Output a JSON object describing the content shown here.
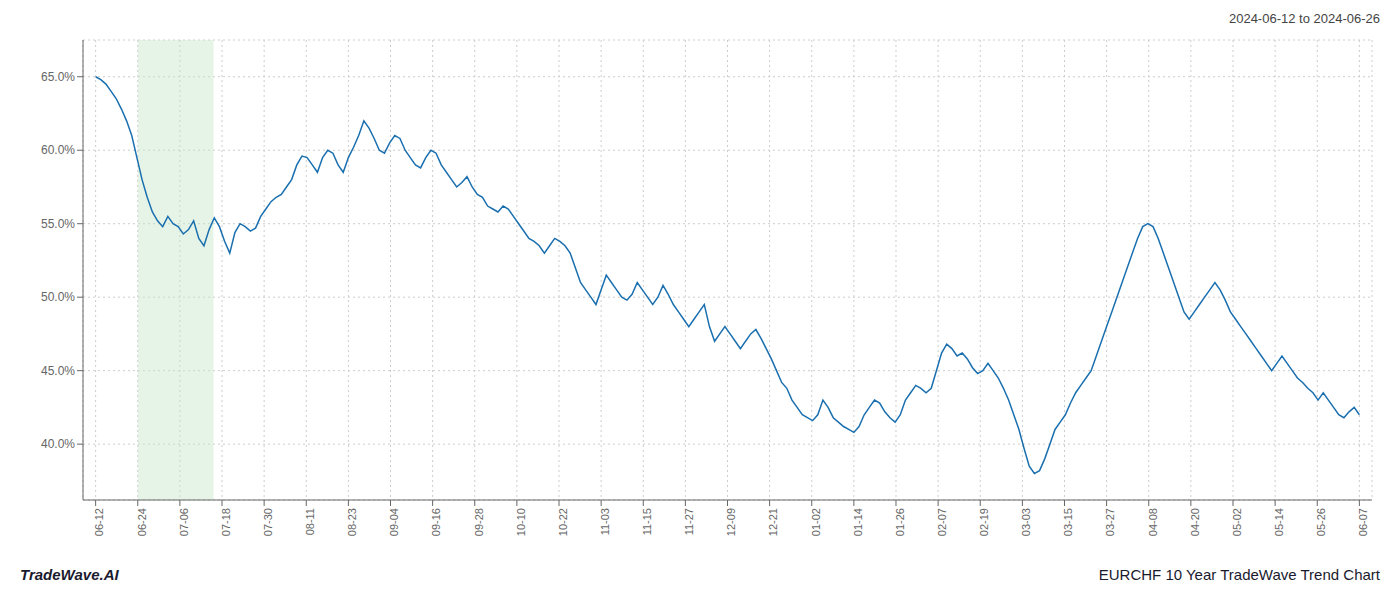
{
  "chart_data": {
    "type": "line",
    "title": "EURCHF 10 Year TradeWave Trend Chart",
    "subtitle": "2024-06-12 to 2024-06-26",
    "annotations": [
      "TradeWave.AI"
    ],
    "color": "#1a6faf",
    "grid": true,
    "xlim": [
      -0.3,
      30.3
    ],
    "xticks": [
      {
        "value": 0,
        "label": "06-12"
      },
      {
        "value": 1,
        "label": "06-24"
      },
      {
        "value": 2,
        "label": "07-06"
      },
      {
        "value": 3,
        "label": "07-18"
      },
      {
        "value": 4,
        "label": "07-30"
      },
      {
        "value": 5,
        "label": "08-11"
      },
      {
        "value": 6,
        "label": "08-23"
      },
      {
        "value": 7,
        "label": "09-04"
      },
      {
        "value": 8,
        "label": "09-16"
      },
      {
        "value": 9,
        "label": "09-28"
      },
      {
        "value": 10,
        "label": "10-10"
      },
      {
        "value": 11,
        "label": "10-22"
      },
      {
        "value": 12,
        "label": "11-03"
      },
      {
        "value": 13,
        "label": "11-15"
      },
      {
        "value": 14,
        "label": "11-27"
      },
      {
        "value": 15,
        "label": "12-09"
      },
      {
        "value": 16,
        "label": "12-21"
      },
      {
        "value": 17,
        "label": "01-02"
      },
      {
        "value": 18,
        "label": "01-14"
      },
      {
        "value": 19,
        "label": "01-26"
      },
      {
        "value": 20,
        "label": "02-07"
      },
      {
        "value": 21,
        "label": "02-19"
      },
      {
        "value": 22,
        "label": "03-03"
      },
      {
        "value": 23,
        "label": "03-15"
      },
      {
        "value": 24,
        "label": "03-27"
      },
      {
        "value": 25,
        "label": "04-08"
      },
      {
        "value": 26,
        "label": "04-20"
      },
      {
        "value": 27,
        "label": "05-02"
      },
      {
        "value": 28,
        "label": "05-14"
      },
      {
        "value": 29,
        "label": "05-26"
      },
      {
        "value": 30,
        "label": "06-07"
      }
    ],
    "ylim": [
      0.362,
      0.675
    ],
    "yticks": [
      {
        "value": 0.4,
        "label": "40.0%"
      },
      {
        "value": 0.45,
        "label": "45.0%"
      },
      {
        "value": 0.5,
        "label": "50.0%"
      },
      {
        "value": 0.55,
        "label": "55.0%"
      },
      {
        "value": 0.6,
        "label": "60.0%"
      },
      {
        "value": 0.65,
        "label": "65.0%"
      }
    ],
    "shade": {
      "x": [
        1.0,
        2.8
      ],
      "color": "#c8e6c9"
    },
    "values": [
      0.65,
      0.648,
      0.645,
      0.64,
      0.635,
      0.628,
      0.62,
      0.61,
      0.595,
      0.58,
      0.568,
      0.558,
      0.552,
      0.548,
      0.555,
      0.55,
      0.548,
      0.543,
      0.546,
      0.552,
      0.54,
      0.535,
      0.546,
      0.554,
      0.548,
      0.538,
      0.53,
      0.544,
      0.55,
      0.548,
      0.545,
      0.547,
      0.555,
      0.56,
      0.565,
      0.568,
      0.57,
      0.575,
      0.58,
      0.59,
      0.596,
      0.595,
      0.59,
      0.585,
      0.595,
      0.6,
      0.598,
      0.59,
      0.585,
      0.595,
      0.602,
      0.61,
      0.62,
      0.615,
      0.608,
      0.6,
      0.598,
      0.605,
      0.61,
      0.608,
      0.6,
      0.595,
      0.59,
      0.588,
      0.595,
      0.6,
      0.598,
      0.59,
      0.585,
      0.58,
      0.575,
      0.578,
      0.582,
      0.575,
      0.57,
      0.568,
      0.562,
      0.56,
      0.558,
      0.562,
      0.56,
      0.555,
      0.55,
      0.545,
      0.54,
      0.538,
      0.535,
      0.53,
      0.535,
      0.54,
      0.538,
      0.535,
      0.53,
      0.52,
      0.51,
      0.505,
      0.5,
      0.495,
      0.505,
      0.515,
      0.51,
      0.505,
      0.5,
      0.498,
      0.502,
      0.51,
      0.505,
      0.5,
      0.495,
      0.5,
      0.508,
      0.502,
      0.495,
      0.49,
      0.485,
      0.48,
      0.485,
      0.49,
      0.495,
      0.48,
      0.47,
      0.475,
      0.48,
      0.475,
      0.47,
      0.465,
      0.47,
      0.475,
      0.478,
      0.472,
      0.465,
      0.458,
      0.45,
      0.442,
      0.438,
      0.43,
      0.425,
      0.42,
      0.418,
      0.416,
      0.42,
      0.43,
      0.425,
      0.418,
      0.415,
      0.412,
      0.41,
      0.408,
      0.412,
      0.42,
      0.425,
      0.43,
      0.428,
      0.422,
      0.418,
      0.415,
      0.42,
      0.43,
      0.435,
      0.44,
      0.438,
      0.435,
      0.438,
      0.45,
      0.462,
      0.468,
      0.465,
      0.46,
      0.462,
      0.458,
      0.452,
      0.448,
      0.45,
      0.455,
      0.45,
      0.445,
      0.438,
      0.43,
      0.42,
      0.41,
      0.397,
      0.385,
      0.38,
      0.382,
      0.39,
      0.4,
      0.41,
      0.415,
      0.42,
      0.428,
      0.435,
      0.44,
      0.445,
      0.45,
      0.46,
      0.47,
      0.48,
      0.49,
      0.5,
      0.51,
      0.52,
      0.53,
      0.54,
      0.548,
      0.55,
      0.548,
      0.54,
      0.53,
      0.52,
      0.51,
      0.5,
      0.49,
      0.485,
      0.49,
      0.495,
      0.5,
      0.505,
      0.51,
      0.505,
      0.498,
      0.49,
      0.485,
      0.48,
      0.475,
      0.47,
      0.465,
      0.46,
      0.455,
      0.45,
      0.455,
      0.46,
      0.455,
      0.45,
      0.445,
      0.442,
      0.438,
      0.435,
      0.43,
      0.435,
      0.43,
      0.425,
      0.42,
      0.418,
      0.422,
      0.425,
      0.42
    ]
  }
}
